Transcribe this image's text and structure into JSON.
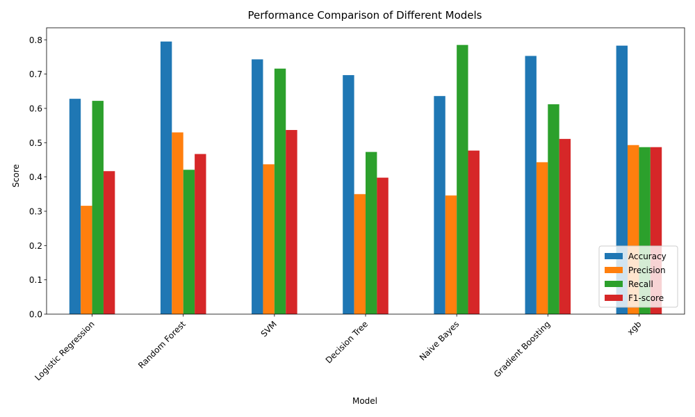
{
  "chart_data": {
    "type": "bar",
    "title": "Performance Comparison of Different Models",
    "xlabel": "Model",
    "ylabel": "Score",
    "ylim": [
      0,
      0.835
    ],
    "yticks": [
      "0.0",
      "0.1",
      "0.2",
      "0.3",
      "0.4",
      "0.5",
      "0.6",
      "0.7",
      "0.8"
    ],
    "categories": [
      "Logistic Regression",
      "Random Forest",
      "SVM",
      "Decision Tree",
      "Naive Bayes",
      "Gradient Boosting",
      "xgb"
    ],
    "series": [
      {
        "name": "Accuracy",
        "color": "#1f77b4",
        "values": [
          0.628,
          0.795,
          0.743,
          0.697,
          0.636,
          0.753,
          0.783
        ]
      },
      {
        "name": "Precision",
        "color": "#ff7f0e",
        "values": [
          0.316,
          0.53,
          0.437,
          0.35,
          0.346,
          0.443,
          0.493
        ]
      },
      {
        "name": "Recall",
        "color": "#2ca02c",
        "values": [
          0.622,
          0.421,
          0.716,
          0.473,
          0.785,
          0.612,
          0.487
        ]
      },
      {
        "name": "F1-score",
        "color": "#d62728",
        "values": [
          0.417,
          0.467,
          0.537,
          0.398,
          0.477,
          0.511,
          0.487
        ]
      }
    ],
    "legend_position": "bottom-right",
    "grid": false
  }
}
